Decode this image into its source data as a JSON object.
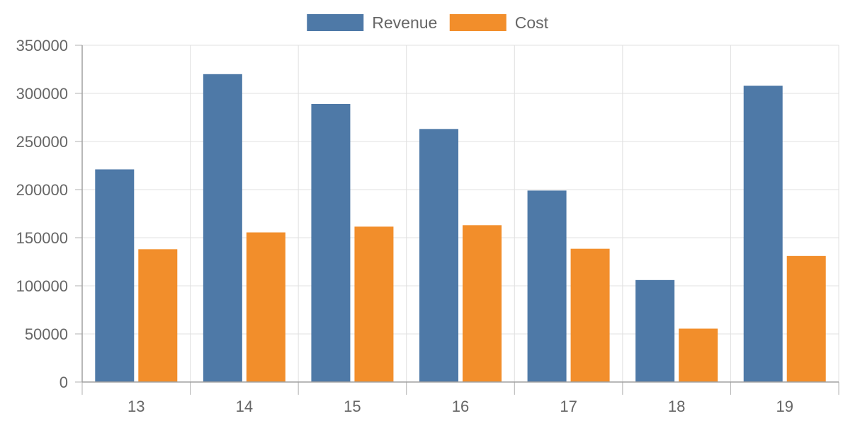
{
  "chart_data": {
    "type": "bar",
    "categories": [
      "13",
      "14",
      "15",
      "16",
      "17",
      "18",
      "19"
    ],
    "series": [
      {
        "name": "Revenue",
        "color": "#4e79a7",
        "values": [
          221000,
          320000,
          289000,
          263000,
          199000,
          106000,
          308000
        ]
      },
      {
        "name": "Cost",
        "color": "#f28e2b",
        "values": [
          138000,
          155500,
          161500,
          163000,
          138500,
          55500,
          131000
        ]
      }
    ],
    "ylim": [
      0,
      350000
    ],
    "yticks": [
      0,
      50000,
      100000,
      150000,
      200000,
      250000,
      300000,
      350000
    ],
    "grid": true,
    "legend_position": "top-center",
    "xlabel": "",
    "ylabel": ""
  }
}
